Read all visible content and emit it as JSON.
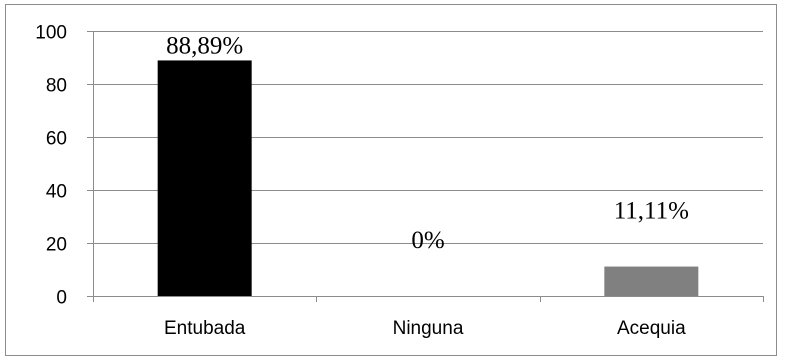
{
  "chart_data": {
    "type": "bar",
    "title": "",
    "xlabel": "",
    "ylabel": "",
    "categories": [
      "Entubada",
      "Ninguna",
      "Acequia"
    ],
    "values": [
      88.89,
      0,
      11.11
    ],
    "data_labels": [
      "88,89%",
      "0%",
      "11,11%"
    ],
    "bar_colors": [
      "#000000",
      "#000000",
      "#808080"
    ],
    "ylim": [
      0,
      100
    ],
    "yticks": [
      0,
      20,
      40,
      60,
      80,
      100
    ],
    "ytick_labels": [
      "0",
      "20",
      "40",
      "60",
      "80",
      "100"
    ],
    "grid": true,
    "legend": "none"
  }
}
